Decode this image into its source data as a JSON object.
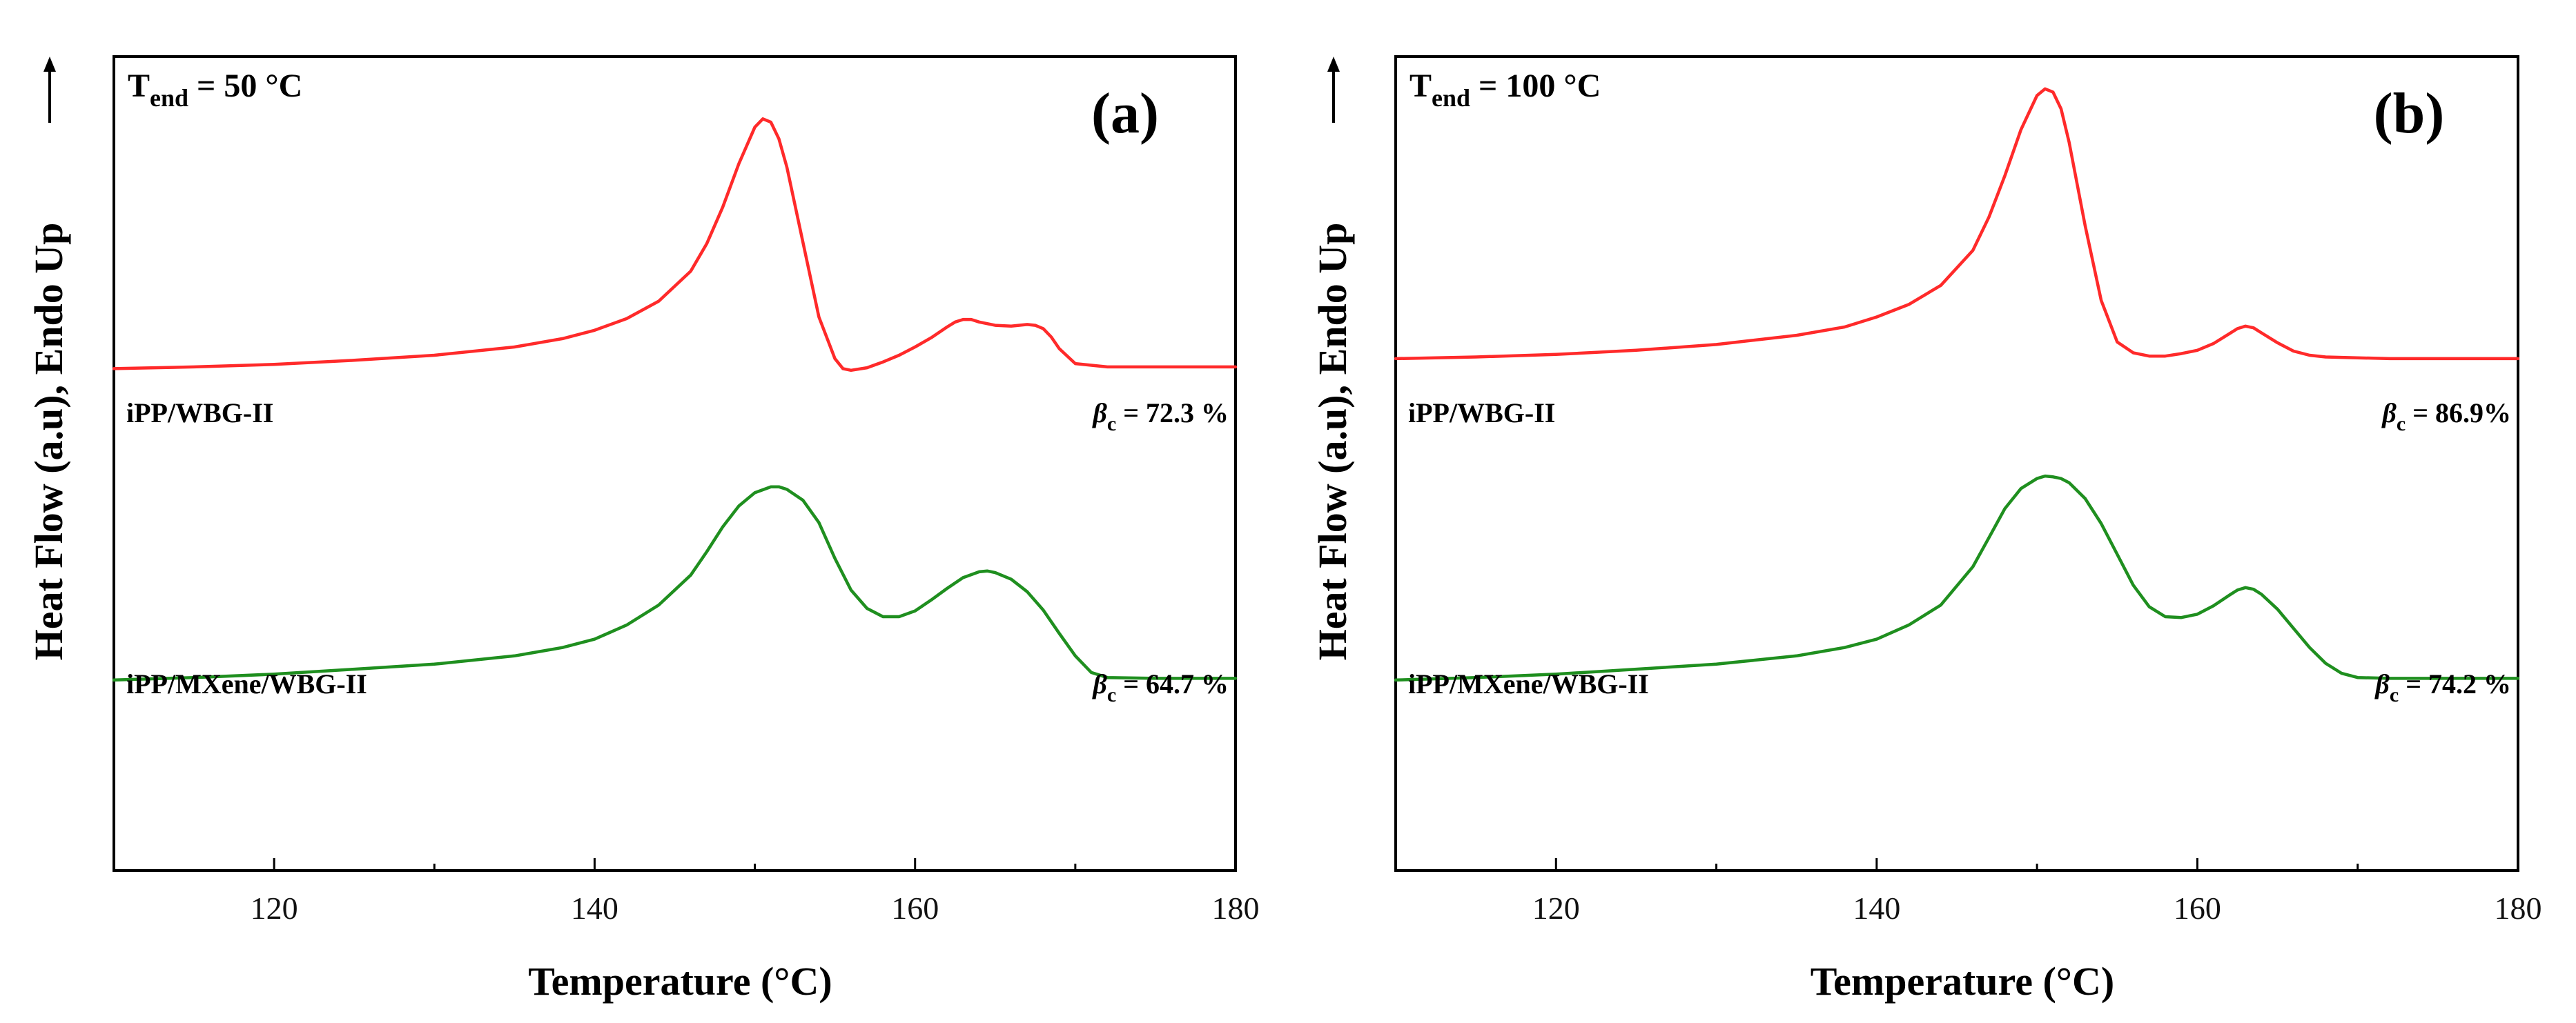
{
  "figure": {
    "ylabel": "Heat Flow (a.u), Endo Up",
    "xlabel": "Temperature (°C)"
  },
  "colors": {
    "red": "#ff2a2a",
    "green": "#1f8f1f",
    "axis": "#000000"
  },
  "chart_data": [
    {
      "type": "line",
      "panel": "(a)",
      "title": "",
      "condition_main": "T",
      "condition_sub": "end",
      "condition_rest": " = 50 °C",
      "xlabel": "Temperature (°C)",
      "ylabel": "Heat Flow (a.u), Endo Up",
      "xlim": [
        110,
        180
      ],
      "ylim": [
        0,
        100
      ],
      "xticks": [
        120,
        140,
        160,
        180
      ],
      "grid": false,
      "y_tick_labels": false,
      "series": [
        {
          "name": "iPP/WBG-II",
          "color": "red",
          "beta_text": " = 72.3 %",
          "x": [
            110,
            115,
            120,
            125,
            130,
            135,
            138,
            140,
            142,
            144,
            146,
            147,
            148,
            149,
            150,
            150.5,
            151,
            151.5,
            152,
            153,
            154,
            155,
            155.5,
            156,
            157,
            158,
            159,
            160,
            161,
            162,
            162.5,
            163,
            163.5,
            164,
            165,
            166,
            167,
            167.5,
            168,
            168.5,
            169,
            170,
            172,
            175,
            180
          ],
          "y": [
            57.8,
            58.0,
            58.3,
            58.8,
            59.4,
            60.4,
            61.4,
            62.4,
            63.8,
            65.9,
            69.5,
            72.8,
            77.2,
            82.4,
            86.8,
            87.8,
            87.4,
            85.4,
            82.0,
            73.0,
            64.0,
            59.0,
            57.8,
            57.6,
            57.9,
            58.6,
            59.4,
            60.4,
            61.5,
            62.8,
            63.4,
            63.7,
            63.7,
            63.4,
            63.0,
            62.9,
            63.1,
            63.0,
            62.6,
            61.6,
            60.2,
            58.4,
            58.0,
            58.0,
            58.0
          ]
        },
        {
          "name": "iPP/MXene/WBG-II",
          "color": "green",
          "beta_text": " = 64.7 %",
          "x": [
            110,
            115,
            120,
            125,
            130,
            135,
            138,
            140,
            142,
            144,
            146,
            147,
            148,
            149,
            150,
            151,
            151.5,
            152,
            153,
            154,
            155,
            156,
            157,
            158,
            159,
            160,
            161,
            162,
            163,
            164,
            164.5,
            165,
            166,
            167,
            168,
            169,
            170,
            171,
            172,
            175,
            180
          ],
          "y": [
            20.4,
            20.7,
            21.1,
            21.7,
            22.3,
            23.3,
            24.3,
            25.3,
            27.0,
            29.4,
            33.0,
            35.8,
            38.8,
            41.3,
            42.9,
            43.6,
            43.6,
            43.3,
            42.0,
            39.3,
            35.0,
            31.2,
            29.0,
            28.0,
            28.0,
            28.7,
            30.0,
            31.4,
            32.7,
            33.4,
            33.5,
            33.3,
            32.5,
            31.0,
            28.8,
            26.0,
            23.3,
            21.3,
            20.7,
            20.6,
            20.6
          ]
        }
      ]
    },
    {
      "type": "line",
      "panel": "(b)",
      "title": "",
      "condition_main": "T",
      "condition_sub": "end",
      "condition_rest": " = 100 °C",
      "xlabel": "Temperature (°C)",
      "ylabel": "Heat Flow (a.u), Endo Up",
      "xlim": [
        110,
        180
      ],
      "ylim": [
        0,
        100
      ],
      "xticks": [
        120,
        140,
        160,
        180
      ],
      "grid": false,
      "y_tick_labels": false,
      "series": [
        {
          "name": "iPP/WBG-II",
          "color": "red",
          "beta_text": " = 86.9%",
          "x": [
            110,
            115,
            120,
            125,
            130,
            135,
            138,
            140,
            142,
            144,
            146,
            147,
            148,
            149,
            150,
            150.5,
            151,
            151.5,
            152,
            153,
            154,
            155,
            156,
            157,
            158,
            159,
            160,
            161,
            162,
            162.5,
            163,
            163.5,
            164,
            165,
            166,
            167,
            168,
            170,
            172,
            175,
            180
          ],
          "y": [
            59.0,
            59.2,
            59.5,
            60.0,
            60.7,
            61.8,
            62.8,
            64.0,
            65.5,
            67.8,
            72.0,
            76.0,
            81.0,
            86.5,
            90.6,
            91.4,
            91.0,
            89.0,
            85.0,
            75.0,
            66.0,
            61.0,
            59.7,
            59.3,
            59.3,
            59.6,
            60.0,
            60.8,
            62.0,
            62.6,
            62.9,
            62.7,
            62.1,
            60.9,
            59.9,
            59.4,
            59.2,
            59.1,
            59.0,
            59.0,
            59.0
          ]
        },
        {
          "name": "iPP/MXene/WBG-II",
          "color": "green",
          "beta_text": " = 74.2 %",
          "x": [
            110,
            115,
            120,
            125,
            130,
            135,
            138,
            140,
            142,
            144,
            146,
            147,
            148,
            149,
            150,
            150.5,
            151,
            151.5,
            152,
            153,
            154,
            155,
            156,
            157,
            158,
            159,
            160,
            161,
            162,
            162.5,
            163,
            163.5,
            164,
            165,
            166,
            167,
            168,
            169,
            170,
            172,
            175,
            180
          ],
          "y": [
            20.4,
            20.7,
            21.1,
            21.7,
            22.3,
            23.3,
            24.3,
            25.3,
            27.0,
            29.4,
            34.0,
            37.5,
            41.0,
            43.4,
            44.6,
            44.9,
            44.8,
            44.6,
            44.1,
            42.2,
            39.2,
            35.5,
            31.8,
            29.2,
            28.0,
            27.9,
            28.3,
            29.3,
            30.6,
            31.2,
            31.5,
            31.3,
            30.7,
            28.9,
            26.6,
            24.3,
            22.4,
            21.2,
            20.7,
            20.6,
            20.6,
            20.6
          ]
        }
      ]
    }
  ]
}
